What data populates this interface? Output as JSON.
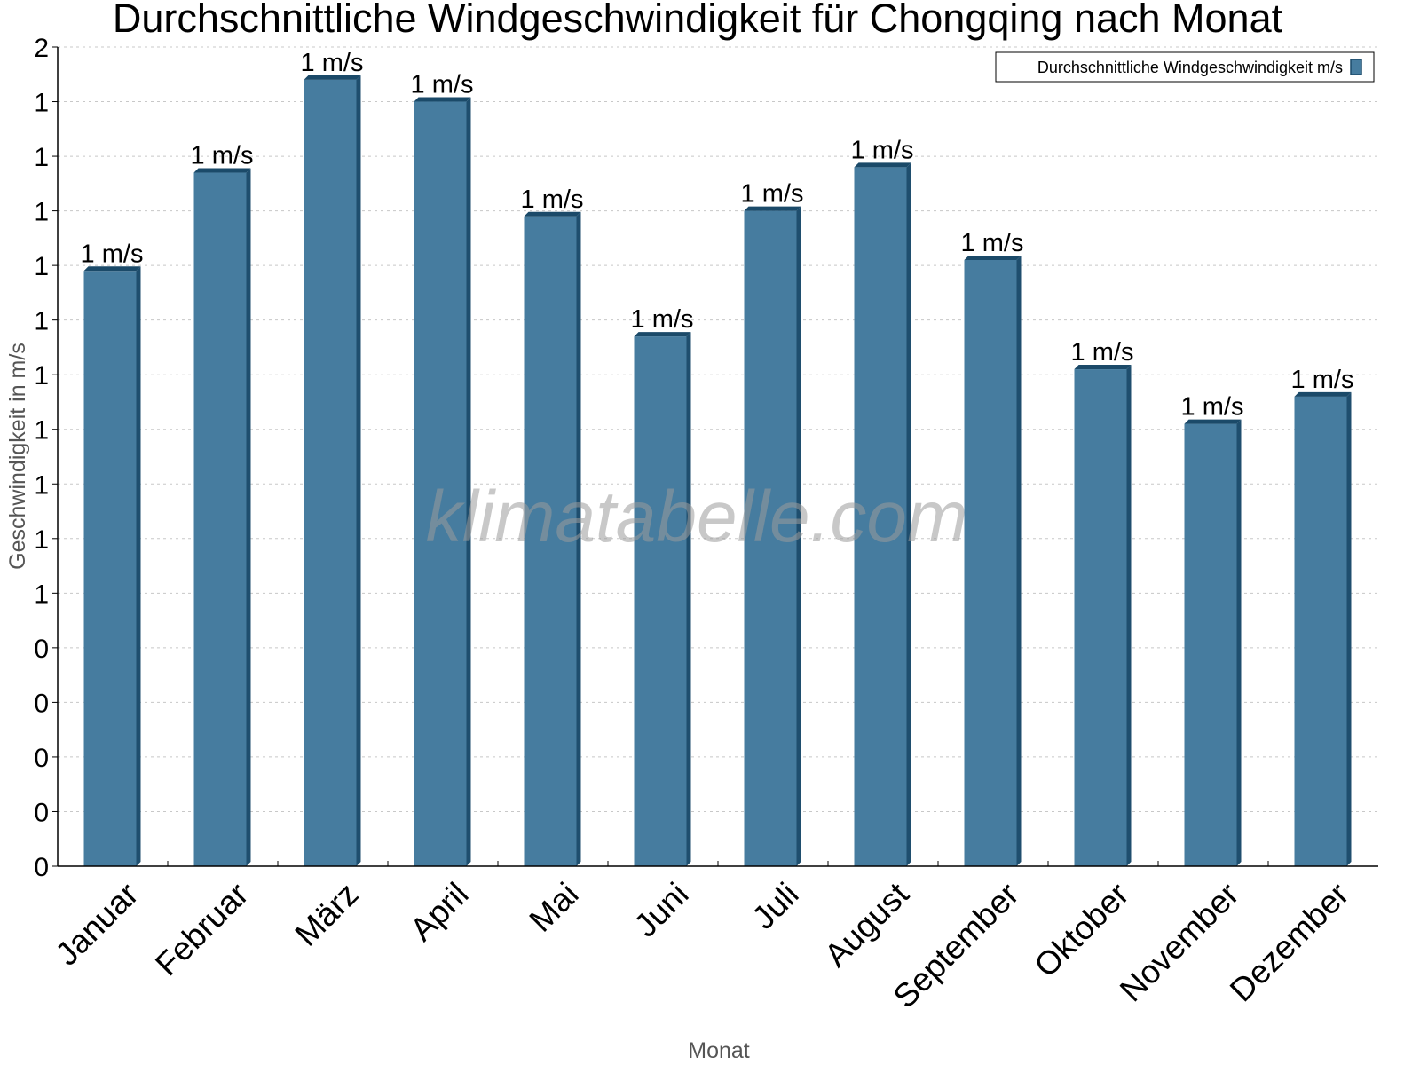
{
  "chart_data": {
    "type": "bar",
    "title": "Durchschnittliche Windgeschwindigkeit für Chongqing nach Monat",
    "xlabel": "Monat",
    "ylabel": "Geschwindigkeit in m/s",
    "categories": [
      "Januar",
      "Februar",
      "März",
      "April",
      "Mai",
      "Juni",
      "Juli",
      "August",
      "September",
      "Oktober",
      "November",
      "Dezember"
    ],
    "series": [
      {
        "name": "Durchschnittliche Windgeschwindigkeit m/s",
        "values": [
          1.09,
          1.27,
          1.44,
          1.4,
          1.19,
          0.97,
          1.2,
          1.28,
          1.11,
          0.91,
          0.81,
          0.86
        ],
        "labels": [
          "1 m/s",
          "1 m/s",
          "1 m/s",
          "1 m/s",
          "1 m/s",
          "1 m/s",
          "1 m/s",
          "1 m/s",
          "1 m/s",
          "1 m/s",
          "1 m/s",
          "1 m/s"
        ],
        "color": "#467c9f"
      }
    ],
    "ylim": [
      0,
      1.5
    ],
    "y_tick_values": [
      0,
      0.1,
      0.2,
      0.3,
      0.4,
      0.5,
      0.6,
      0.7,
      0.8,
      0.9,
      1.0,
      1.1,
      1.2,
      1.3,
      1.4,
      1.5
    ],
    "y_tick_labels": [
      "0",
      "0",
      "0",
      "0",
      "0",
      "1",
      "1",
      "1",
      "1",
      "1",
      "1",
      "1",
      "1",
      "1",
      "1",
      "2"
    ],
    "grid": true,
    "legend_position": "top-right",
    "watermark": "klimatabelle.com"
  }
}
